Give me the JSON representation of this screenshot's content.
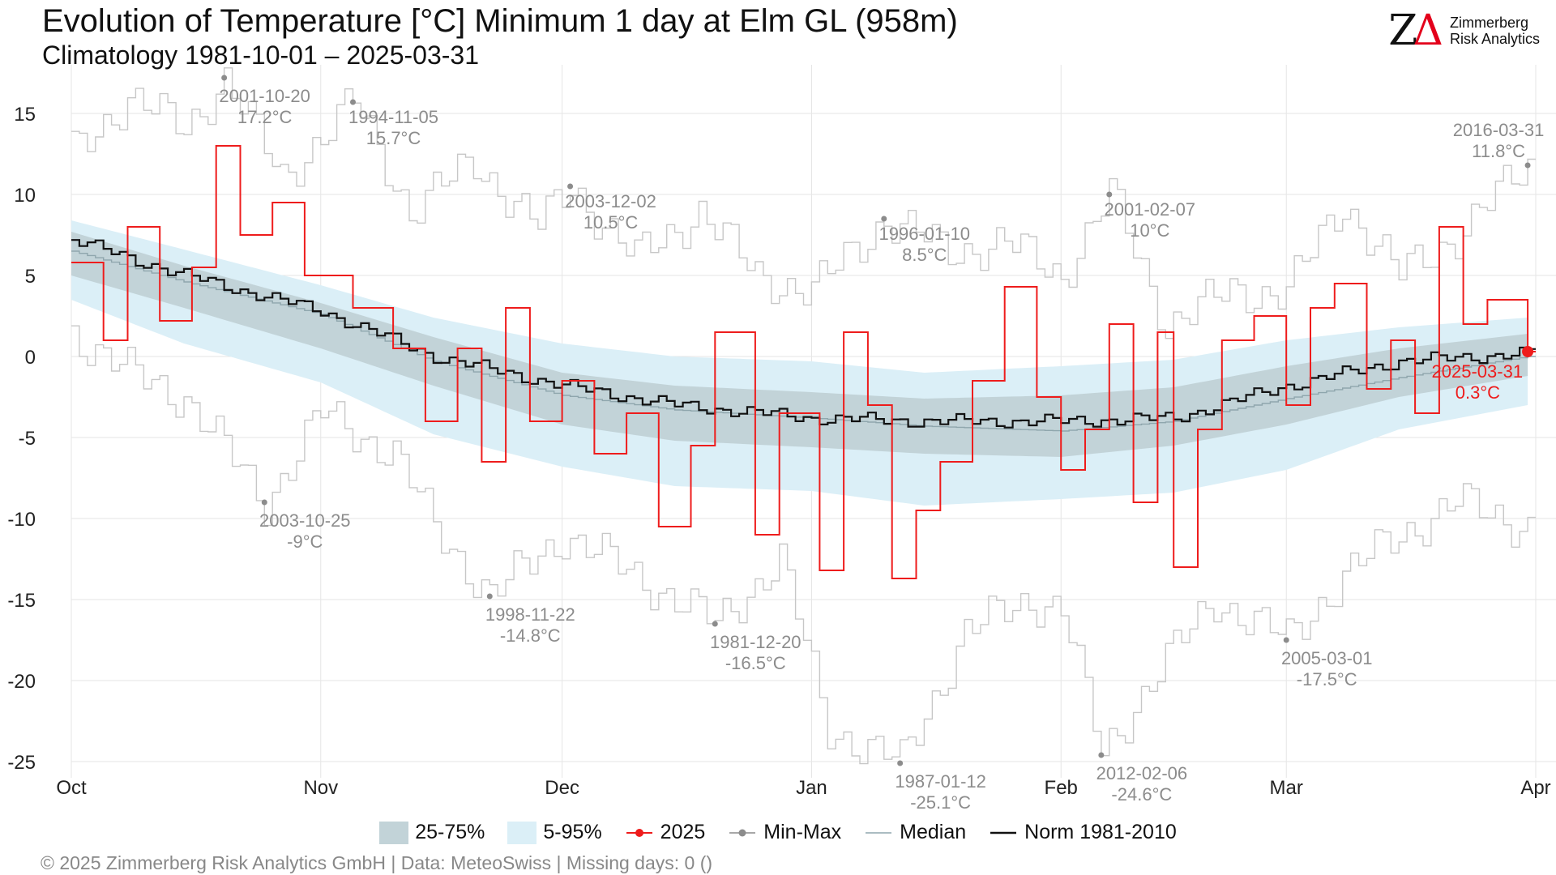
{
  "header": {
    "title": "Evolution of Temperature [°C] Minimum 1 day at Elm  GL (958m)",
    "subtitle": "Climatology 1981-10-01 – 2025-03-31"
  },
  "logo": {
    "mark_z": "Z",
    "mark_delta": "Δ",
    "line1": "Zimmerberg",
    "line2": "Risk Analytics"
  },
  "legend": {
    "iqr_label": "25-75%",
    "p90_label": "5-95%",
    "year_label": "2025",
    "minmax_label": "Min-Max",
    "median_label": "Median",
    "norm_label": "Norm 1981-2010"
  },
  "footer": "©  2025 Zimmerberg Risk Analytics GmbH | Data: MeteoSwiss | Missing days: 0 ()",
  "colors": {
    "iqr_band": "#c2d3d8",
    "p90_band": "#dbeff7",
    "year": "#ee1c1c",
    "minmax": "#c7c7c7",
    "median": "#8fa6ad",
    "norm": "#111111",
    "record_label": "#8c8c8c",
    "grid": "#e5e5e5"
  },
  "chart_data": {
    "type": "line",
    "title": "Evolution of Temperature [°C] Minimum 1 day at Elm  GL (958m)",
    "x_axis": {
      "start": "2024-10-01",
      "end": "2025-04-01",
      "tick_labels": [
        "Oct",
        "Nov",
        "Dec",
        "Jan",
        "Feb",
        "Mar",
        "Apr"
      ],
      "tick_dates": [
        "2024-10-01",
        "2024-11-01",
        "2024-12-01",
        "2025-01-01",
        "2025-02-01",
        "2025-03-01",
        "2025-04-01"
      ]
    },
    "y_axis": {
      "ylim": [
        -26,
        18
      ],
      "ticks": [
        15,
        10,
        5,
        0,
        -5,
        -10,
        -15,
        -20,
        -25
      ],
      "tick_labels": [
        "15",
        "10",
        "5",
        "0",
        "-5",
        "-10",
        "-15",
        "-20",
        "-25"
      ]
    },
    "grid": true,
    "legend_position": "bottom",
    "series_daily_anchors": {
      "norm": {
        "dates": [
          "2024-10-01",
          "2024-10-15",
          "2024-11-01",
          "2024-11-15",
          "2024-12-01",
          "2024-12-15",
          "2025-01-01",
          "2025-01-15",
          "2025-02-01",
          "2025-02-15",
          "2025-03-01",
          "2025-03-15",
          "2025-03-31"
        ],
        "values": [
          7.2,
          5.0,
          2.8,
          0.0,
          -1.8,
          -3.0,
          -3.8,
          -4.0,
          -4.0,
          -3.8,
          -1.8,
          -0.3,
          0.2
        ]
      },
      "median": {
        "dates": [
          "2024-10-01",
          "2024-10-15",
          "2024-11-01",
          "2024-11-15",
          "2024-12-01",
          "2024-12-15",
          "2025-01-01",
          "2025-01-15",
          "2025-02-01",
          "2025-02-15",
          "2025-03-01",
          "2025-03-15",
          "2025-03-31"
        ],
        "values": [
          6.5,
          4.6,
          2.6,
          -0.3,
          -2.4,
          -3.3,
          -3.8,
          -4.3,
          -4.6,
          -4.0,
          -2.6,
          -1.3,
          0.0
        ]
      },
      "p25": {
        "dates": [
          "2024-10-01",
          "2024-10-15",
          "2024-11-01",
          "2024-11-15",
          "2024-12-01",
          "2024-12-15",
          "2025-01-01",
          "2025-01-15",
          "2025-02-01",
          "2025-02-15",
          "2025-03-01",
          "2025-03-15",
          "2025-03-31"
        ],
        "values": [
          5.0,
          3.0,
          0.5,
          -1.8,
          -4.2,
          -5.2,
          -5.6,
          -6.0,
          -6.2,
          -5.5,
          -4.2,
          -2.5,
          -1.2
        ]
      },
      "p75": {
        "dates": [
          "2024-10-01",
          "2024-10-15",
          "2024-11-01",
          "2024-11-15",
          "2024-12-01",
          "2024-12-15",
          "2025-01-01",
          "2025-01-15",
          "2025-02-01",
          "2025-02-15",
          "2025-03-01",
          "2025-03-15",
          "2025-03-31"
        ],
        "values": [
          7.7,
          5.6,
          3.3,
          1.2,
          -1.0,
          -1.8,
          -2.2,
          -2.6,
          -2.4,
          -1.9,
          -0.6,
          0.5,
          1.4
        ]
      },
      "p05": {
        "dates": [
          "2024-10-01",
          "2024-10-15",
          "2024-11-01",
          "2024-11-15",
          "2024-12-01",
          "2024-12-15",
          "2025-01-01",
          "2025-01-15",
          "2025-02-01",
          "2025-02-15",
          "2025-03-01",
          "2025-03-15",
          "2025-03-31"
        ],
        "values": [
          3.5,
          0.8,
          -1.6,
          -4.8,
          -6.8,
          -8.0,
          -8.3,
          -9.2,
          -8.8,
          -8.4,
          -7.0,
          -4.5,
          -3.0
        ]
      },
      "p95": {
        "dates": [
          "2024-10-01",
          "2024-10-15",
          "2024-11-01",
          "2024-11-15",
          "2024-12-01",
          "2024-12-15",
          "2025-01-01",
          "2025-01-15",
          "2025-02-01",
          "2025-02-15",
          "2025-03-01",
          "2025-03-15",
          "2025-03-31"
        ],
        "values": [
          8.4,
          6.6,
          4.4,
          2.4,
          0.8,
          0.0,
          -0.3,
          -1.0,
          -0.6,
          -0.2,
          1.0,
          1.8,
          2.4
        ]
      },
      "max": {
        "dates": [
          "2024-10-01",
          "2024-10-08",
          "2024-10-15",
          "2024-10-20",
          "2024-10-27",
          "2024-11-05",
          "2024-11-12",
          "2024-11-20",
          "2024-11-28",
          "2024-12-02",
          "2024-12-10",
          "2024-12-18",
          "2024-12-25",
          "2025-01-01",
          "2025-01-10",
          "2025-01-18",
          "2025-01-25",
          "2025-02-01",
          "2025-02-07",
          "2025-02-14",
          "2025-02-22",
          "2025-03-01",
          "2025-03-08",
          "2025-03-15",
          "2025-03-22",
          "2025-03-31"
        ],
        "values": [
          12.5,
          16.0,
          14.0,
          17.2,
          11.0,
          15.7,
          9.0,
          12.0,
          8.0,
          10.5,
          6.0,
          9.0,
          5.0,
          4.0,
          8.5,
          6.5,
          7.0,
          5.0,
          10.0,
          2.0,
          4.0,
          4.0,
          9.5,
          5.0,
          7.5,
          11.8
        ]
      },
      "min": {
        "dates": [
          "2024-10-01",
          "2024-10-08",
          "2024-10-15",
          "2024-10-25",
          "2024-11-01",
          "2024-11-10",
          "2024-11-15",
          "2024-11-22",
          "2024-12-01",
          "2024-12-10",
          "2024-12-20",
          "2024-12-28",
          "2025-01-03",
          "2025-01-12",
          "2025-01-20",
          "2025-01-28",
          "2025-02-01",
          "2025-02-06",
          "2025-02-12",
          "2025-02-20",
          "2025-03-01",
          "2025-03-08",
          "2025-03-15",
          "2025-03-22",
          "2025-03-31"
        ],
        "values": [
          1.5,
          -1.0,
          -2.5,
          -9.0,
          -3.5,
          -6.0,
          -10.5,
          -14.8,
          -11.0,
          -13.5,
          -16.5,
          -12.5,
          -23.0,
          -25.1,
          -17.0,
          -15.0,
          -15.5,
          -24.6,
          -20.0,
          -15.0,
          -17.5,
          -13.5,
          -11.0,
          -9.0,
          -10.5
        ]
      },
      "year_2025": {
        "dates": [
          "2024-10-01",
          "2024-10-05",
          "2024-10-08",
          "2024-10-12",
          "2024-10-16",
          "2024-10-19",
          "2024-10-22",
          "2024-10-26",
          "2024-10-30",
          "2024-11-05",
          "2024-11-10",
          "2024-11-14",
          "2024-11-18",
          "2024-11-21",
          "2024-11-24",
          "2024-11-27",
          "2024-12-01",
          "2024-12-05",
          "2024-12-09",
          "2024-12-13",
          "2024-12-17",
          "2024-12-20",
          "2024-12-25",
          "2024-12-28",
          "2025-01-02",
          "2025-01-05",
          "2025-01-08",
          "2025-01-11",
          "2025-01-14",
          "2025-01-17",
          "2025-01-21",
          "2025-01-25",
          "2025-01-29",
          "2025-02-01",
          "2025-02-04",
          "2025-02-07",
          "2025-02-10",
          "2025-02-13",
          "2025-02-15",
          "2025-02-18",
          "2025-02-21",
          "2025-02-25",
          "2025-03-01",
          "2025-03-04",
          "2025-03-07",
          "2025-03-11",
          "2025-03-14",
          "2025-03-17",
          "2025-03-20",
          "2025-03-23",
          "2025-03-26",
          "2025-03-31"
        ],
        "values": [
          5.8,
          1.0,
          8.0,
          2.2,
          5.5,
          13.0,
          7.5,
          9.5,
          5.0,
          3.0,
          0.5,
          -4.0,
          0.5,
          -6.5,
          3.0,
          -4.0,
          -1.5,
          -6.0,
          -3.5,
          -10.5,
          -5.5,
          1.5,
          -11.0,
          -3.5,
          -13.2,
          1.5,
          -3.0,
          -13.7,
          -9.5,
          -6.5,
          -1.5,
          4.3,
          -2.5,
          -7.0,
          -4.5,
          2.0,
          -9.0,
          1.5,
          -13.0,
          -4.5,
          1.0,
          2.5,
          -3.0,
          3.0,
          4.5,
          -2.0,
          1.0,
          -3.5,
          8.0,
          2.0,
          3.5,
          0.3
        ]
      }
    },
    "annotations": [
      {
        "date": "2024-10-20",
        "value": 17.2,
        "label_date": "2001-10-20",
        "label_value": "17.2°C",
        "kind": "max"
      },
      {
        "date": "2024-11-05",
        "value": 15.7,
        "label_date": "1994-11-05",
        "label_value": "15.7°C",
        "kind": "max"
      },
      {
        "date": "2024-12-02",
        "value": 10.5,
        "label_date": "2003-12-02",
        "label_value": "10.5°C",
        "kind": "max"
      },
      {
        "date": "2025-01-10",
        "value": 8.5,
        "label_date": "1996-01-10",
        "label_value": "8.5°C",
        "kind": "max"
      },
      {
        "date": "2025-02-07",
        "value": 10.0,
        "label_date": "2001-02-07",
        "label_value": "10°C",
        "kind": "max"
      },
      {
        "date": "2025-03-31",
        "value": 11.8,
        "label_date": "2016-03-31",
        "label_value": "11.8°C",
        "kind": "max"
      },
      {
        "date": "2024-10-25",
        "value": -9.0,
        "label_date": "2003-10-25",
        "label_value": "-9°C",
        "kind": "min"
      },
      {
        "date": "2024-11-22",
        "value": -14.8,
        "label_date": "1998-11-22",
        "label_value": "-14.8°C",
        "kind": "min"
      },
      {
        "date": "2024-12-20",
        "value": -16.5,
        "label_date": "1981-12-20",
        "label_value": "-16.5°C",
        "kind": "min"
      },
      {
        "date": "2025-01-12",
        "value": -25.1,
        "label_date": "1987-01-12",
        "label_value": "-25.1°C",
        "kind": "min"
      },
      {
        "date": "2025-02-06",
        "value": -24.6,
        "label_date": "2012-02-06",
        "label_value": "-24.6°C",
        "kind": "min"
      },
      {
        "date": "2025-03-01",
        "value": -17.5,
        "label_date": "2005-03-01",
        "label_value": "-17.5°C",
        "kind": "min"
      },
      {
        "date": "2025-03-31",
        "value": 0.3,
        "label_date": "2025-03-31",
        "label_value": "0.3°C",
        "kind": "current"
      }
    ]
  }
}
